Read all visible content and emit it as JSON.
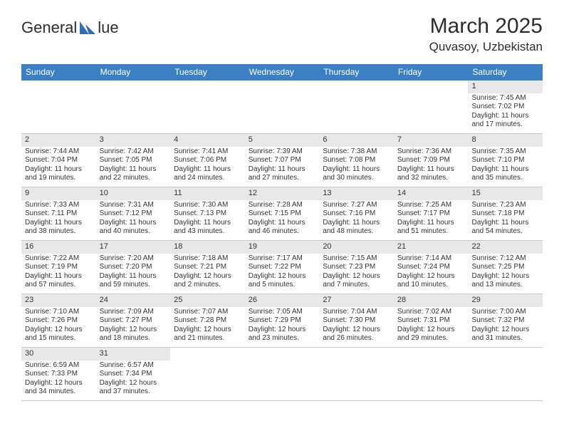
{
  "logo": {
    "text_left": "General",
    "text_right": "lue",
    "brand_color": "#2e6fb5"
  },
  "title": "March 2025",
  "location": "Quvasoy, Uzbekistan",
  "header_bg": "#3b7fc4",
  "daynum_bg": "#e8e8e8",
  "weekdays": [
    "Sunday",
    "Monday",
    "Tuesday",
    "Wednesday",
    "Thursday",
    "Friday",
    "Saturday"
  ],
  "weeks": [
    [
      null,
      null,
      null,
      null,
      null,
      null,
      {
        "n": "1",
        "sr": "Sunrise: 7:45 AM",
        "ss": "Sunset: 7:02 PM",
        "dl": "Daylight: 11 hours and 17 minutes."
      }
    ],
    [
      {
        "n": "2",
        "sr": "Sunrise: 7:44 AM",
        "ss": "Sunset: 7:04 PM",
        "dl": "Daylight: 11 hours and 19 minutes."
      },
      {
        "n": "3",
        "sr": "Sunrise: 7:42 AM",
        "ss": "Sunset: 7:05 PM",
        "dl": "Daylight: 11 hours and 22 minutes."
      },
      {
        "n": "4",
        "sr": "Sunrise: 7:41 AM",
        "ss": "Sunset: 7:06 PM",
        "dl": "Daylight: 11 hours and 24 minutes."
      },
      {
        "n": "5",
        "sr": "Sunrise: 7:39 AM",
        "ss": "Sunset: 7:07 PM",
        "dl": "Daylight: 11 hours and 27 minutes."
      },
      {
        "n": "6",
        "sr": "Sunrise: 7:38 AM",
        "ss": "Sunset: 7:08 PM",
        "dl": "Daylight: 11 hours and 30 minutes."
      },
      {
        "n": "7",
        "sr": "Sunrise: 7:36 AM",
        "ss": "Sunset: 7:09 PM",
        "dl": "Daylight: 11 hours and 32 minutes."
      },
      {
        "n": "8",
        "sr": "Sunrise: 7:35 AM",
        "ss": "Sunset: 7:10 PM",
        "dl": "Daylight: 11 hours and 35 minutes."
      }
    ],
    [
      {
        "n": "9",
        "sr": "Sunrise: 7:33 AM",
        "ss": "Sunset: 7:11 PM",
        "dl": "Daylight: 11 hours and 38 minutes."
      },
      {
        "n": "10",
        "sr": "Sunrise: 7:31 AM",
        "ss": "Sunset: 7:12 PM",
        "dl": "Daylight: 11 hours and 40 minutes."
      },
      {
        "n": "11",
        "sr": "Sunrise: 7:30 AM",
        "ss": "Sunset: 7:13 PM",
        "dl": "Daylight: 11 hours and 43 minutes."
      },
      {
        "n": "12",
        "sr": "Sunrise: 7:28 AM",
        "ss": "Sunset: 7:15 PM",
        "dl": "Daylight: 11 hours and 46 minutes."
      },
      {
        "n": "13",
        "sr": "Sunrise: 7:27 AM",
        "ss": "Sunset: 7:16 PM",
        "dl": "Daylight: 11 hours and 48 minutes."
      },
      {
        "n": "14",
        "sr": "Sunrise: 7:25 AM",
        "ss": "Sunset: 7:17 PM",
        "dl": "Daylight: 11 hours and 51 minutes."
      },
      {
        "n": "15",
        "sr": "Sunrise: 7:23 AM",
        "ss": "Sunset: 7:18 PM",
        "dl": "Daylight: 11 hours and 54 minutes."
      }
    ],
    [
      {
        "n": "16",
        "sr": "Sunrise: 7:22 AM",
        "ss": "Sunset: 7:19 PM",
        "dl": "Daylight: 11 hours and 57 minutes."
      },
      {
        "n": "17",
        "sr": "Sunrise: 7:20 AM",
        "ss": "Sunset: 7:20 PM",
        "dl": "Daylight: 11 hours and 59 minutes."
      },
      {
        "n": "18",
        "sr": "Sunrise: 7:18 AM",
        "ss": "Sunset: 7:21 PM",
        "dl": "Daylight: 12 hours and 2 minutes."
      },
      {
        "n": "19",
        "sr": "Sunrise: 7:17 AM",
        "ss": "Sunset: 7:22 PM",
        "dl": "Daylight: 12 hours and 5 minutes."
      },
      {
        "n": "20",
        "sr": "Sunrise: 7:15 AM",
        "ss": "Sunset: 7:23 PM",
        "dl": "Daylight: 12 hours and 7 minutes."
      },
      {
        "n": "21",
        "sr": "Sunrise: 7:14 AM",
        "ss": "Sunset: 7:24 PM",
        "dl": "Daylight: 12 hours and 10 minutes."
      },
      {
        "n": "22",
        "sr": "Sunrise: 7:12 AM",
        "ss": "Sunset: 7:25 PM",
        "dl": "Daylight: 12 hours and 13 minutes."
      }
    ],
    [
      {
        "n": "23",
        "sr": "Sunrise: 7:10 AM",
        "ss": "Sunset: 7:26 PM",
        "dl": "Daylight: 12 hours and 15 minutes."
      },
      {
        "n": "24",
        "sr": "Sunrise: 7:09 AM",
        "ss": "Sunset: 7:27 PM",
        "dl": "Daylight: 12 hours and 18 minutes."
      },
      {
        "n": "25",
        "sr": "Sunrise: 7:07 AM",
        "ss": "Sunset: 7:28 PM",
        "dl": "Daylight: 12 hours and 21 minutes."
      },
      {
        "n": "26",
        "sr": "Sunrise: 7:05 AM",
        "ss": "Sunset: 7:29 PM",
        "dl": "Daylight: 12 hours and 23 minutes."
      },
      {
        "n": "27",
        "sr": "Sunrise: 7:04 AM",
        "ss": "Sunset: 7:30 PM",
        "dl": "Daylight: 12 hours and 26 minutes."
      },
      {
        "n": "28",
        "sr": "Sunrise: 7:02 AM",
        "ss": "Sunset: 7:31 PM",
        "dl": "Daylight: 12 hours and 29 minutes."
      },
      {
        "n": "29",
        "sr": "Sunrise: 7:00 AM",
        "ss": "Sunset: 7:32 PM",
        "dl": "Daylight: 12 hours and 31 minutes."
      }
    ],
    [
      {
        "n": "30",
        "sr": "Sunrise: 6:59 AM",
        "ss": "Sunset: 7:33 PM",
        "dl": "Daylight: 12 hours and 34 minutes."
      },
      {
        "n": "31",
        "sr": "Sunrise: 6:57 AM",
        "ss": "Sunset: 7:34 PM",
        "dl": "Daylight: 12 hours and 37 minutes."
      },
      null,
      null,
      null,
      null,
      null
    ]
  ]
}
